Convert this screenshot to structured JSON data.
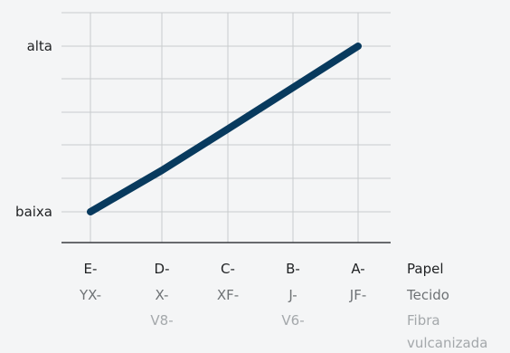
{
  "chart_data": {
    "type": "line",
    "title": "",
    "xlabel": "",
    "ylabel": "",
    "categories": [
      {
        "paper": "E-",
        "cloth": "YX-",
        "fibre": ""
      },
      {
        "paper": "D-",
        "cloth": "X-",
        "fibre": "V8-"
      },
      {
        "paper": "C-",
        "cloth": "XF-",
        "fibre": ""
      },
      {
        "paper": "B-",
        "cloth": "J-",
        "fibre": "V6-"
      },
      {
        "paper": "A-",
        "cloth": "JF-",
        "fibre": ""
      }
    ],
    "row_labels": {
      "paper": "Papel",
      "cloth": "Tecido",
      "fibre_line1": "Fibra",
      "fibre_line2": "vulcanizada"
    },
    "y_ticks": [
      {
        "label": "baixa",
        "value": 0
      },
      {
        "label": "alta",
        "value": 1
      }
    ],
    "ylim": [
      0,
      1
    ],
    "series": [
      {
        "values": [
          0,
          0.25,
          0.5,
          0.75,
          1
        ],
        "color": "#083a5e"
      }
    ],
    "grid": true
  },
  "colors": {
    "line": "#083a5e",
    "grid": "#c8cbcd",
    "axis": "#3a3d40",
    "text_dark": "#1f2123",
    "text_mid": "#6e7275",
    "text_light": "#a4a8ab"
  }
}
